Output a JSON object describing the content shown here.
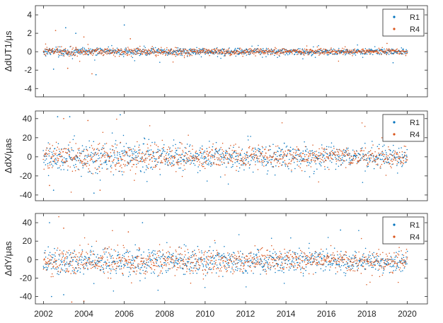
{
  "figure": {
    "description_free": true
  },
  "chart_data": [
    {
      "type": "scatter",
      "title": "",
      "xlabel": "",
      "ylabel": "ΔdUT1/μs",
      "xlim": [
        2001.6,
        2021.0
      ],
      "ylim": [
        -4.9,
        5.0
      ],
      "xticks": [
        2002,
        2004,
        2006,
        2008,
        2010,
        2012,
        2014,
        2016,
        2018,
        2020
      ],
      "xtick_labels": [],
      "yticks": [
        -4,
        -2,
        0,
        2,
        4
      ],
      "ytick_labels": [
        "-4",
        "-2",
        "0",
        "2",
        "4"
      ],
      "legend": "top-right",
      "grid": false,
      "series": [
        {
          "name": "R1",
          "color": "#0072BD",
          "x_range": [
            2002.0,
            2020.0
          ],
          "approx_sampling": "weekly",
          "center": 0.0,
          "spread": 0.35,
          "extremes": [
            [
              2003.1,
              2.6
            ],
            [
              2006.0,
              2.9
            ],
            [
              2002.5,
              -1.9
            ],
            [
              2004.6,
              -2.5
            ],
            [
              2003.6,
              2.0
            ],
            [
              2019.3,
              -1.2
            ]
          ]
        },
        {
          "name": "R4",
          "color": "#D95319",
          "x_range": [
            2002.0,
            2020.0
          ],
          "approx_sampling": "weekly",
          "center": 0.0,
          "spread": 0.35,
          "extremes": [
            [
              2002.6,
              2.3
            ],
            [
              2004.0,
              1.6
            ],
            [
              2004.4,
              -2.4
            ],
            [
              2003.2,
              -1.8
            ],
            [
              2006.3,
              1.4
            ],
            [
              2019.0,
              0.9
            ]
          ]
        }
      ]
    },
    {
      "type": "scatter",
      "title": "",
      "xlabel": "",
      "ylabel": "ΔdX/μas",
      "xlim": [
        2001.6,
        2021.0
      ],
      "ylim": [
        -46,
        48
      ],
      "xticks": [
        2002,
        2004,
        2006,
        2008,
        2010,
        2012,
        2014,
        2016,
        2018,
        2020
      ],
      "xtick_labels": [],
      "yticks": [
        -40,
        -20,
        0,
        20,
        40
      ],
      "ytick_labels": [
        "-40",
        "-20",
        "0",
        "20",
        "40"
      ],
      "legend": "top-right",
      "grid": false,
      "series": [
        {
          "name": "R1",
          "color": "#0072BD",
          "x_range": [
            2002.0,
            2020.0
          ],
          "approx_sampling": "weekly",
          "center": 0.0,
          "spread": 12.0,
          "extremes": [
            [
              2002.7,
              42
            ],
            [
              2003.3,
              42
            ],
            [
              2005.8,
              44
            ],
            [
              2002.5,
              -35
            ],
            [
              2004.5,
              -38
            ]
          ]
        },
        {
          "name": "R4",
          "color": "#D95319",
          "x_range": [
            2002.0,
            2020.0
          ],
          "approx_sampling": "weekly",
          "center": 0.0,
          "spread": 11.0,
          "extremes": [
            [
              2003.0,
              40
            ],
            [
              2004.2,
              38
            ],
            [
              2002.3,
              -30
            ],
            [
              2004.8,
              -35
            ]
          ]
        }
      ]
    },
    {
      "type": "scatter",
      "title": "",
      "xlabel": "",
      "ylabel": "ΔdY/μas",
      "xlim": [
        2001.6,
        2021.0
      ],
      "ylim": [
        -48,
        50
      ],
      "xticks": [
        2002,
        2004,
        2006,
        2008,
        2010,
        2012,
        2014,
        2016,
        2018,
        2020
      ],
      "xtick_labels": [
        "2002",
        "2004",
        "2006",
        "2008",
        "2010",
        "2012",
        "2014",
        "2016",
        "2018",
        "2020"
      ],
      "yticks": [
        -40,
        -20,
        0,
        20,
        40
      ],
      "ytick_labels": [
        "-40",
        "-20",
        "0",
        "20",
        "40"
      ],
      "legend": "top-right",
      "grid": false,
      "series": [
        {
          "name": "R1",
          "color": "#0072BD",
          "x_range": [
            2002.0,
            2020.0
          ],
          "approx_sampling": "weekly",
          "center": -2.0,
          "spread": 12.0,
          "extremes": [
            [
              2002.3,
              40
            ],
            [
              2006.9,
              40
            ],
            [
              2016.7,
              32
            ],
            [
              2002.4,
              -40
            ],
            [
              2003.0,
              -38
            ]
          ]
        },
        {
          "name": "R4",
          "color": "#D95319",
          "x_range": [
            2002.0,
            2020.0
          ],
          "approx_sampling": "weekly",
          "center": -2.0,
          "spread": 12.0,
          "extremes": [
            [
              2003.0,
              34
            ],
            [
              2003.4,
              -46
            ],
            [
              2004.0,
              -45
            ],
            [
              2006.2,
              30
            ]
          ]
        }
      ]
    }
  ]
}
